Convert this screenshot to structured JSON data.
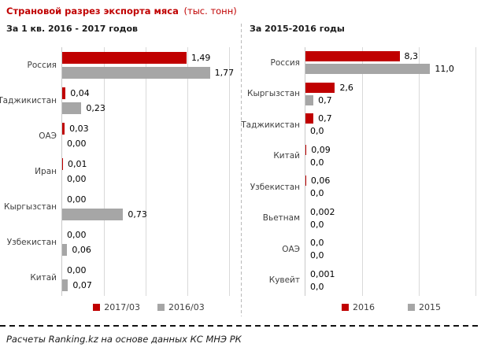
{
  "header": {
    "title": "Страновой разрез экспорта мяса",
    "unit": "(тыс. тонн)"
  },
  "footer": {
    "source": "Расчеты Ranking.kz на основе данных КС МНЭ РК"
  },
  "colors": {
    "series_red": "#C00000",
    "series_gray": "#A6A6A6",
    "gridline": "#D9D9D9",
    "divider": "#BFBFBF",
    "title_red": "#C00000"
  },
  "chart_data": [
    {
      "type": "bar",
      "orientation": "horizontal",
      "title": "За 1 кв. 2016 - 2017 годов",
      "categories": [
        "Россия",
        "Таджикистан",
        "ОАЭ",
        "Иран",
        "Кыргызстан",
        "Узбекистан",
        "Китай"
      ],
      "series": [
        {
          "name": "2017/03",
          "color": "#C00000",
          "values": [
            1.49,
            0.04,
            0.03,
            0.01,
            0.0,
            0.0,
            0.0
          ],
          "labels": [
            "1,49",
            "0,04",
            "0,03",
            "0,01",
            "0,00",
            "0,00",
            "0,00"
          ]
        },
        {
          "name": "2016/03",
          "color": "#A6A6A6",
          "values": [
            1.77,
            0.23,
            0.0,
            0.0,
            0.73,
            0.06,
            0.07
          ],
          "labels": [
            "1,77",
            "0,23",
            "0,00",
            "0,00",
            "0,73",
            "0,06",
            "0,07"
          ]
        }
      ],
      "xlim": [
        0,
        2.0
      ],
      "gridline_values": [
        0.5,
        1.0,
        1.5,
        2.0
      ],
      "grid": true,
      "legend_position": "bottom",
      "value_labels": true
    },
    {
      "type": "bar",
      "orientation": "horizontal",
      "title": "За 2015-2016 годы",
      "categories": [
        "Россия",
        "Кыргызстан",
        "Таджикистан",
        "Китай",
        "Узбекистан",
        "Вьетнам",
        "ОАЭ",
        "Кувейт"
      ],
      "series": [
        {
          "name": "2016",
          "color": "#C00000",
          "values": [
            8.3,
            2.6,
            0.7,
            0.09,
            0.06,
            0.002,
            0.0,
            0.001
          ],
          "labels": [
            "8,3",
            "2,6",
            "0,7",
            "0,09",
            "0,06",
            "0,002",
            "0,0",
            "0,001"
          ]
        },
        {
          "name": "2015",
          "color": "#A6A6A6",
          "values": [
            11.0,
            0.7,
            0.0,
            0.0,
            0.0,
            0.0,
            0.0,
            0.0
          ],
          "labels": [
            "11,0",
            "0,7",
            "0,0",
            "0,0",
            "0,0",
            "0,0",
            "0,0",
            "0,0"
          ]
        }
      ],
      "xlim": [
        0,
        15
      ],
      "gridline_values": [
        5,
        10,
        15
      ],
      "grid": true,
      "legend_position": "bottom",
      "value_labels": true
    }
  ]
}
